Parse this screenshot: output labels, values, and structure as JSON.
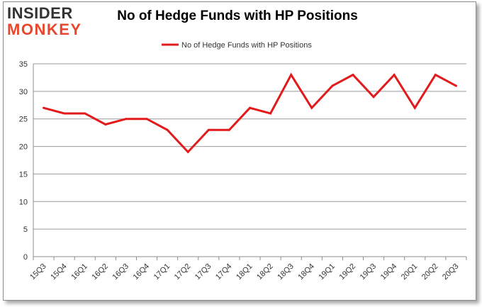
{
  "brand": {
    "line1": "INSIDER",
    "line2": "MONKEY"
  },
  "chart_data": {
    "type": "line",
    "title": "No of Hedge Funds with HP Positions",
    "xlabel": "",
    "ylabel": "",
    "categories": [
      "15Q3",
      "15Q4",
      "16Q1",
      "16Q2",
      "16Q3",
      "16Q4",
      "17Q1",
      "17Q2",
      "17Q3",
      "17Q4",
      "18Q1",
      "18Q2",
      "18Q3",
      "18Q4",
      "19Q1",
      "19Q2",
      "19Q3",
      "19Q4",
      "20Q1",
      "20Q2",
      "20Q3"
    ],
    "series": [
      {
        "name": "No of Hedge Funds with HP Positions",
        "color": "#e31a1c",
        "values": [
          27,
          26,
          26,
          24,
          25,
          25,
          23,
          19,
          23,
          23,
          27,
          26,
          33,
          27,
          31,
          33,
          29,
          33,
          27,
          33,
          31
        ]
      }
    ],
    "ylim": [
      0,
      35
    ],
    "yticks": [
      0,
      5,
      10,
      15,
      20,
      25,
      30,
      35
    ],
    "grid": true,
    "legend_position": "top-center"
  }
}
